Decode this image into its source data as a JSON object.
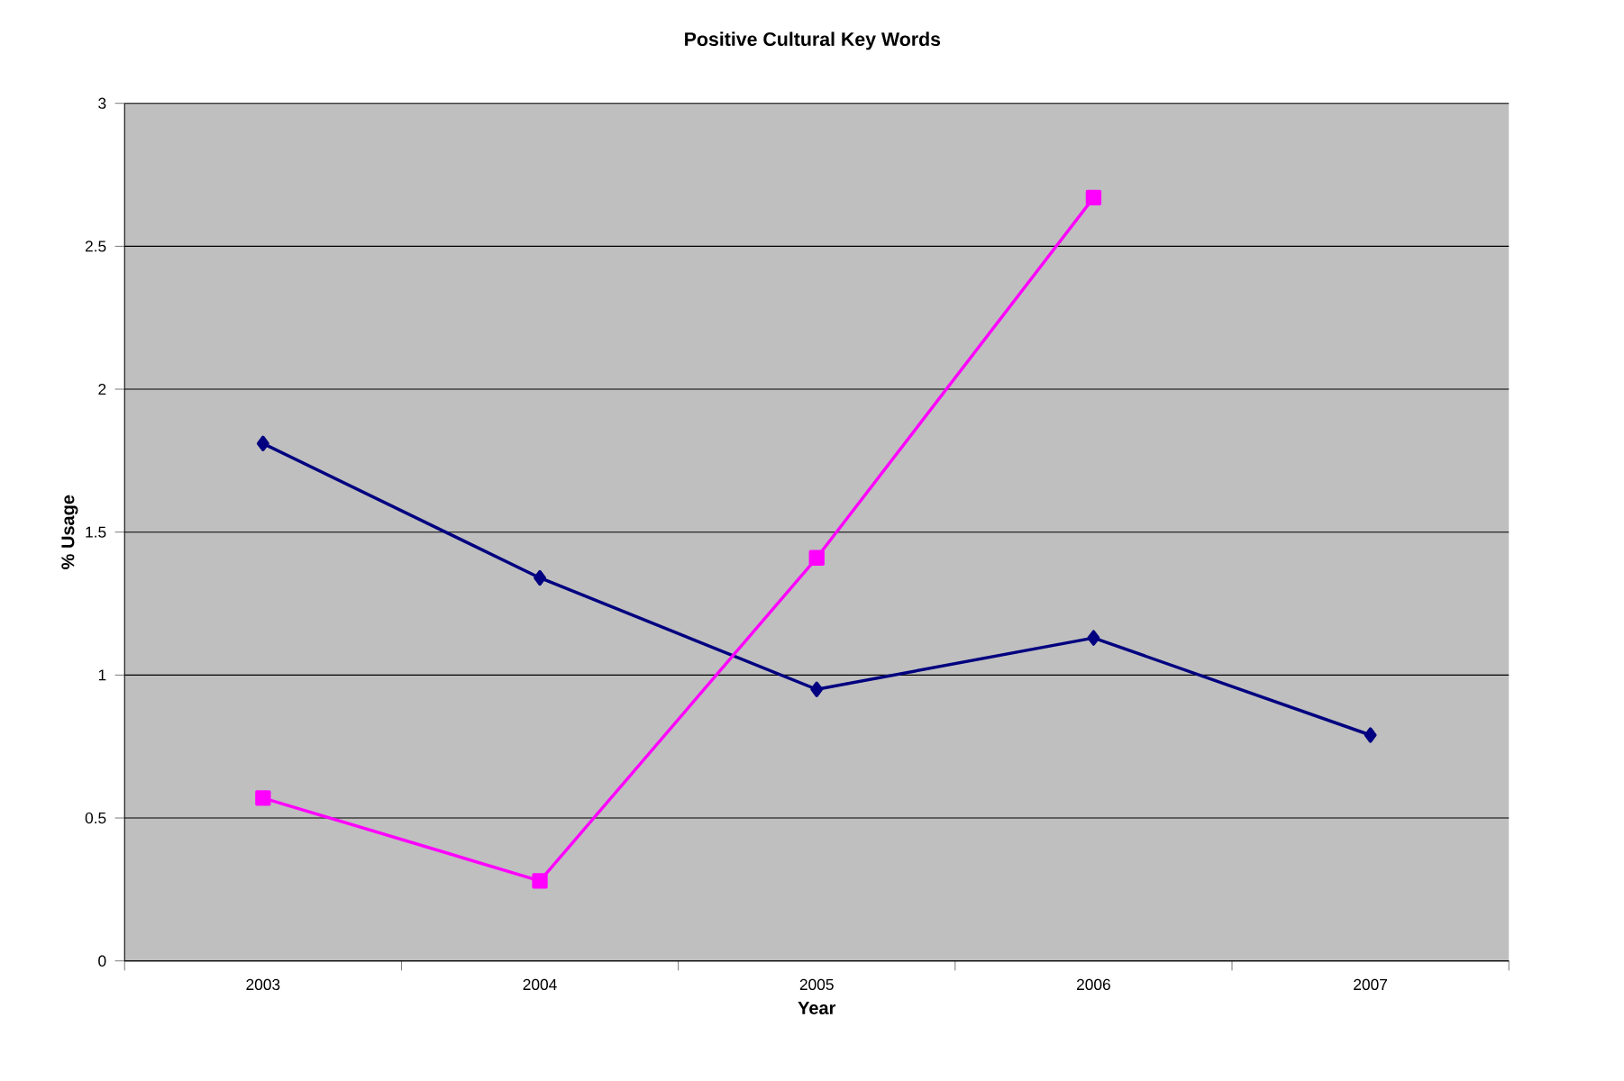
{
  "chart_data": {
    "type": "line",
    "title": "Positive Cultural Key Words",
    "xlabel": "Year",
    "ylabel": "% Usage",
    "categories": [
      "2003",
      "2004",
      "2005",
      "2006",
      "2007"
    ],
    "series": [
      {
        "color": "#000080",
        "marker": "diamond",
        "values": [
          1.81,
          1.34,
          0.95,
          1.13,
          0.79
        ]
      },
      {
        "color": "#ff00ff",
        "marker": "square",
        "values": [
          0.57,
          0.28,
          1.41,
          2.67,
          null
        ]
      }
    ],
    "ylim": [
      0,
      3
    ],
    "yticks": [
      0,
      0.5,
      1,
      1.5,
      2,
      2.5,
      3
    ],
    "grid": "y",
    "line_style": "solid"
  }
}
